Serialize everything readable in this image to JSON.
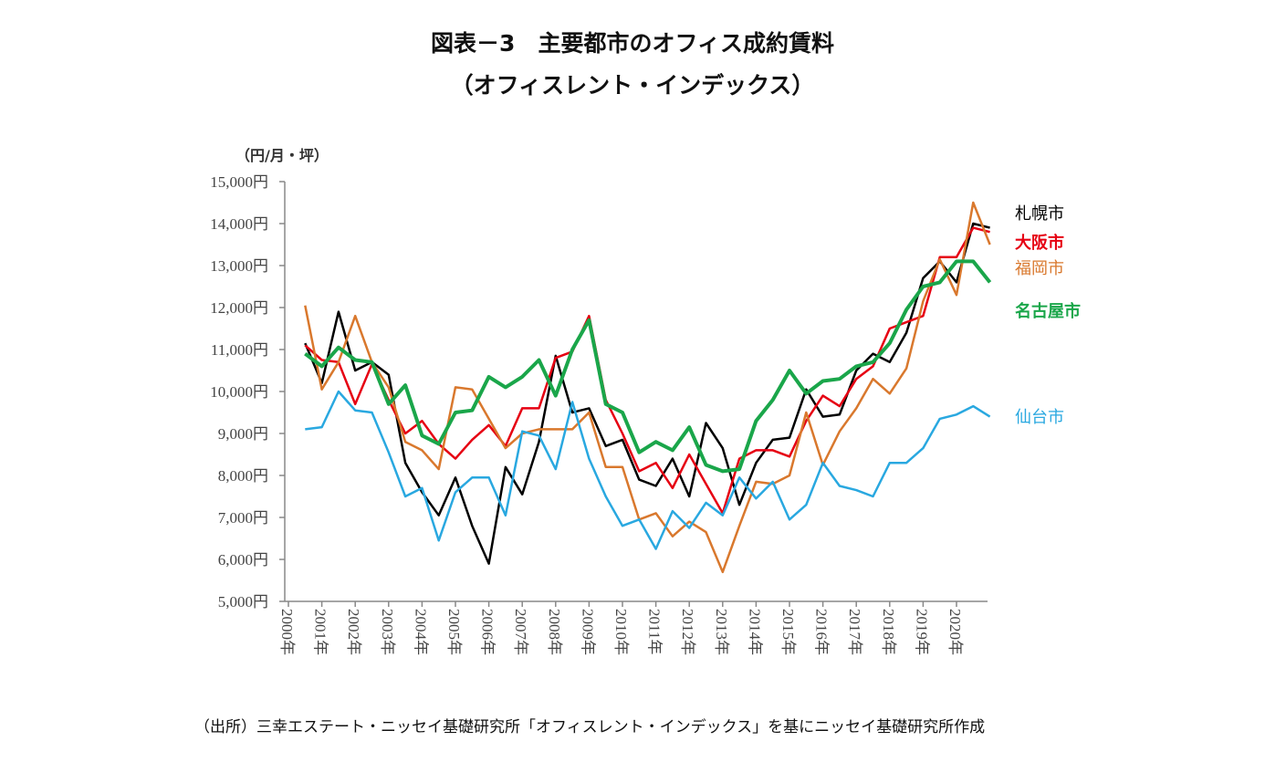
{
  "chart_data": {
    "type": "line",
    "title": "図表－3　主要都市のオフィス成約賃料",
    "subtitle": "（オフィスレント・インデックス）",
    "ylabel": "（円/月・坪）",
    "ylim": [
      5000,
      15000
    ],
    "yticks": [
      "5,000円",
      "6,000円",
      "7,000円",
      "8,000円",
      "9,000円",
      "10,000円",
      "11,000円",
      "12,000円",
      "13,000円",
      "14,000円",
      "15,000円"
    ],
    "xticks": [
      "2000年",
      "2001年",
      "2002年",
      "2003年",
      "2004年",
      "2005年",
      "2006年",
      "2007年",
      "2008年",
      "2009年",
      "2010年",
      "2011年",
      "2012年",
      "2013年",
      "2014年",
      "2015年",
      "2016年",
      "2017年",
      "2018年",
      "2019年",
      "2020年"
    ],
    "x_note": "semiannual, 2000H2 – 2021H1",
    "grid": false,
    "legend": "right, direct labels",
    "series": [
      {
        "name": "札幌市",
        "color": "#000000",
        "bold": false,
        "width": 2.5,
        "values": [
          11150,
          10200,
          11900,
          10500,
          10700,
          10400,
          8300,
          7600,
          7050,
          7950,
          6800,
          5900,
          8200,
          7550,
          8800,
          10850,
          9500,
          9600,
          8700,
          8850,
          7900,
          7750,
          8400,
          7500,
          9250,
          8650,
          7300,
          8300,
          8850,
          8900,
          10050,
          9400,
          9450,
          10500,
          10900,
          10700,
          11400,
          12700,
          13100,
          12600,
          14000,
          13900
        ]
      },
      {
        "name": "大阪市",
        "color": "#e60012",
        "bold": true,
        "width": 2.5,
        "values": [
          11100,
          10750,
          10700,
          9700,
          10650,
          9800,
          9000,
          9300,
          8750,
          8400,
          8850,
          9200,
          8700,
          9600,
          9600,
          10800,
          10950,
          11800,
          9800,
          9000,
          8100,
          8300,
          7700,
          8500,
          7800,
          7100,
          8400,
          8600,
          8600,
          8450,
          9300,
          9900,
          9650,
          10300,
          10600,
          11500,
          11650,
          11800,
          13200,
          13200,
          13900,
          13800
        ]
      },
      {
        "name": "福岡市",
        "color": "#d9782d",
        "bold": false,
        "width": 2.5,
        "values": [
          12050,
          10050,
          10700,
          11800,
          10700,
          10100,
          8800,
          8600,
          8150,
          10100,
          10050,
          9350,
          8650,
          9000,
          9100,
          9100,
          9100,
          9500,
          8200,
          8200,
          6950,
          7100,
          6550,
          6900,
          6650,
          5700,
          6800,
          7850,
          7800,
          8000,
          9500,
          8250,
          9050,
          9600,
          10300,
          9950,
          10550,
          12150,
          13150,
          12300,
          14500,
          13500
        ]
      },
      {
        "name": "名古屋市",
        "color": "#1aa64a",
        "bold": true,
        "width": 4,
        "values": [
          10900,
          10600,
          11050,
          10750,
          10700,
          9700,
          10150,
          8950,
          8750,
          9500,
          9550,
          10350,
          10100,
          10350,
          10750,
          9900,
          11000,
          11700,
          9700,
          9500,
          8550,
          8800,
          8600,
          9150,
          8250,
          8100,
          8150,
          9300,
          9800,
          10500,
          9950,
          10250,
          10300,
          10600,
          10700,
          11150,
          11950,
          12500,
          12600,
          13100,
          13100,
          12600
        ]
      },
      {
        "name": "仙台市",
        "color": "#29a8e0",
        "bold": false,
        "width": 2.5,
        "values": [
          9100,
          9150,
          10000,
          9550,
          9500,
          8550,
          7500,
          7700,
          6450,
          7600,
          7950,
          7950,
          7050,
          9050,
          8950,
          8150,
          9750,
          8400,
          7500,
          6800,
          6950,
          6250,
          7150,
          6750,
          7350,
          7050,
          7950,
          7450,
          7850,
          6950,
          7300,
          8300,
          7750,
          7650,
          7500,
          8300,
          8300,
          8650,
          9350,
          9450,
          9650,
          9400
        ]
      }
    ]
  },
  "source": "（出所）三幸エステート・ニッセイ基礎研究所「オフィスレント・インデックス」を基にニッセイ基礎研究所作成"
}
